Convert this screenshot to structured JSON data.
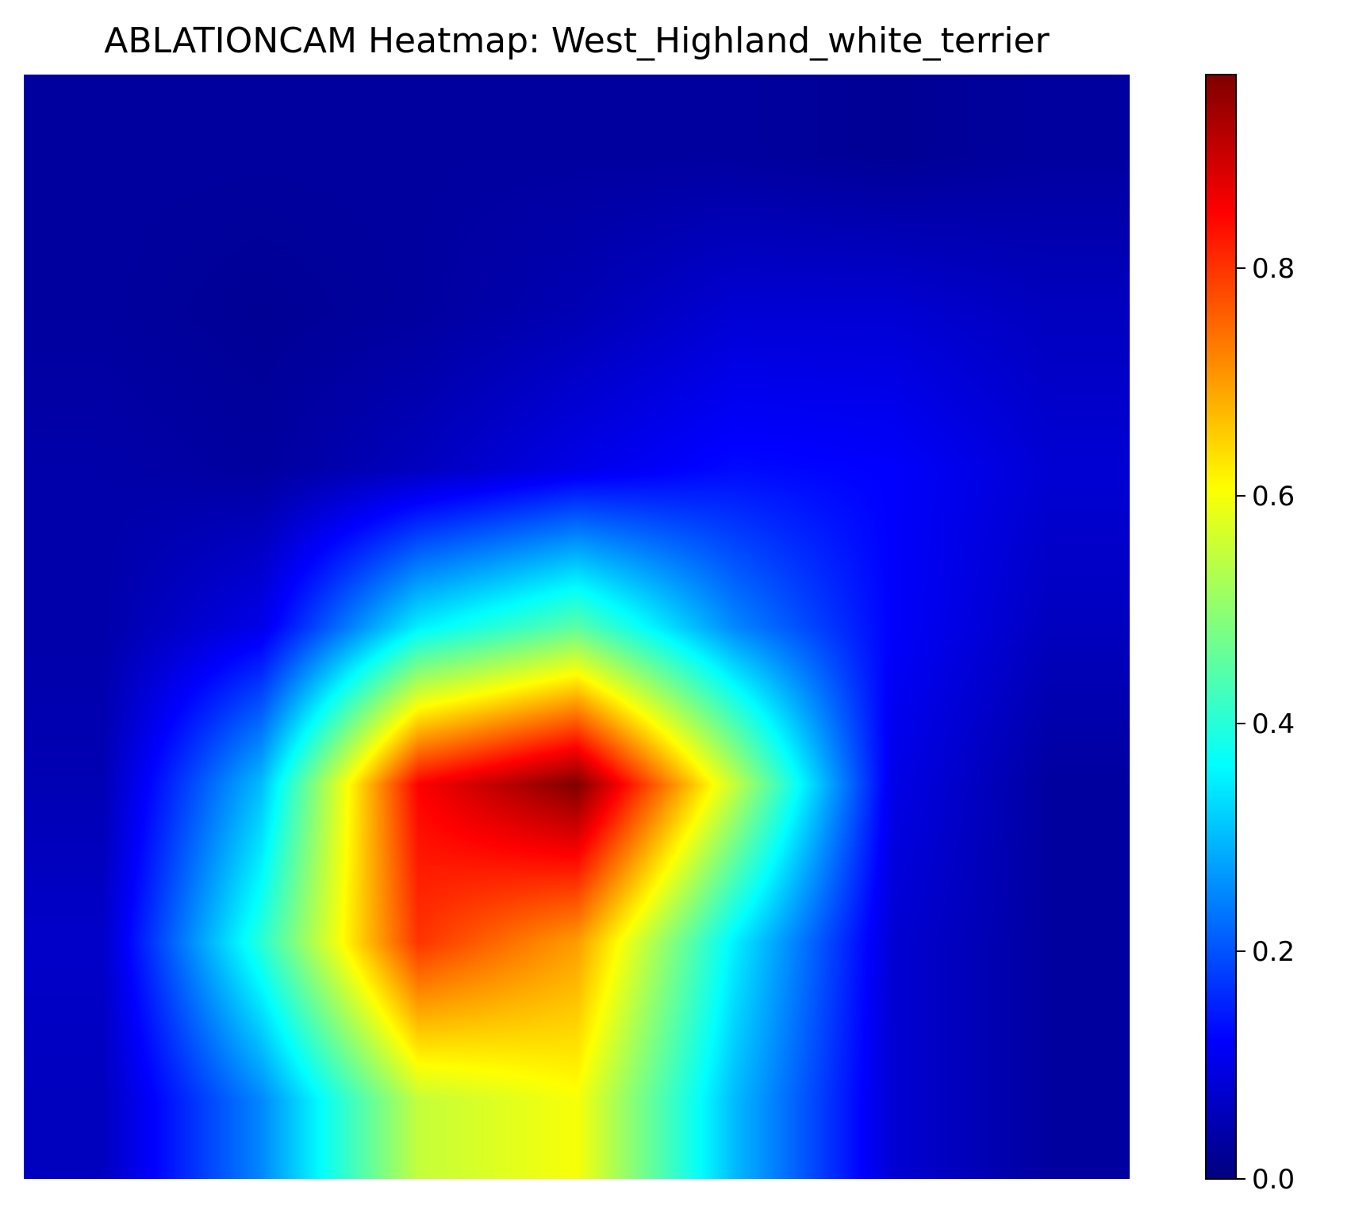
{
  "chart_data": {
    "type": "heatmap",
    "title": "ABLATIONCAM Heatmap: West_Highland_white_terrier",
    "xlabel": "",
    "ylabel": "",
    "axes_visible": false,
    "interpolation": "smooth",
    "colormap": "jet",
    "colormap_stops": [
      "#00007f",
      "#0000ff",
      "#00ffff",
      "#ffff00",
      "#ff0000",
      "#7f0000"
    ],
    "grid_shape": [
      7,
      7
    ],
    "values": [
      [
        0.03,
        0.03,
        0.03,
        0.03,
        0.03,
        0.02,
        0.03
      ],
      [
        0.03,
        0.02,
        0.03,
        0.05,
        0.08,
        0.08,
        0.06
      ],
      [
        0.04,
        0.03,
        0.06,
        0.1,
        0.13,
        0.12,
        0.08
      ],
      [
        0.04,
        0.1,
        0.35,
        0.45,
        0.25,
        0.12,
        0.06
      ],
      [
        0.05,
        0.3,
        0.85,
        0.97,
        0.55,
        0.1,
        0.03
      ],
      [
        0.07,
        0.4,
        0.8,
        0.7,
        0.35,
        0.08,
        0.03
      ],
      [
        0.06,
        0.25,
        0.55,
        0.6,
        0.3,
        0.08,
        0.03
      ]
    ],
    "colorbar": {
      "vmin": 0.0,
      "vmax": 0.97,
      "ticks": [
        0.0,
        0.2,
        0.4,
        0.6,
        0.8
      ],
      "tick_labels": [
        "0.0",
        "0.2",
        "0.4",
        "0.6",
        "0.8"
      ]
    }
  }
}
